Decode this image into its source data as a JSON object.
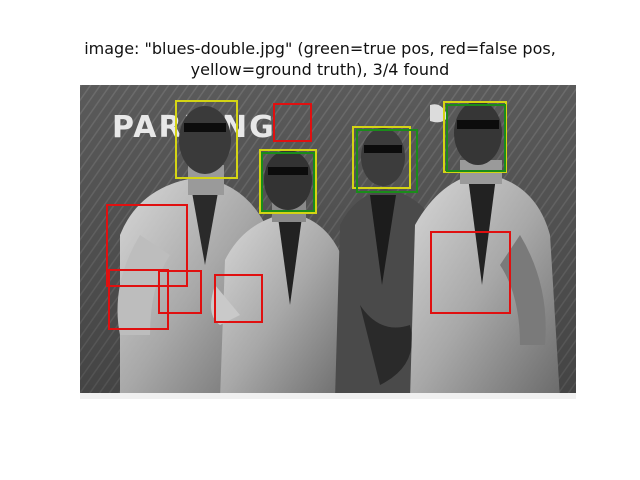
{
  "title": {
    "line1": "image: \"blues-double.jpg\" (green=true pos, red=false pos,",
    "line2": "yellow=ground truth), 3/4 found"
  },
  "photo": {
    "sign_text": "PARKING",
    "colors": {
      "true_pos": "#1a8c1a",
      "false_pos": "#e01010",
      "ground_truth": "#d4d414"
    }
  }
}
